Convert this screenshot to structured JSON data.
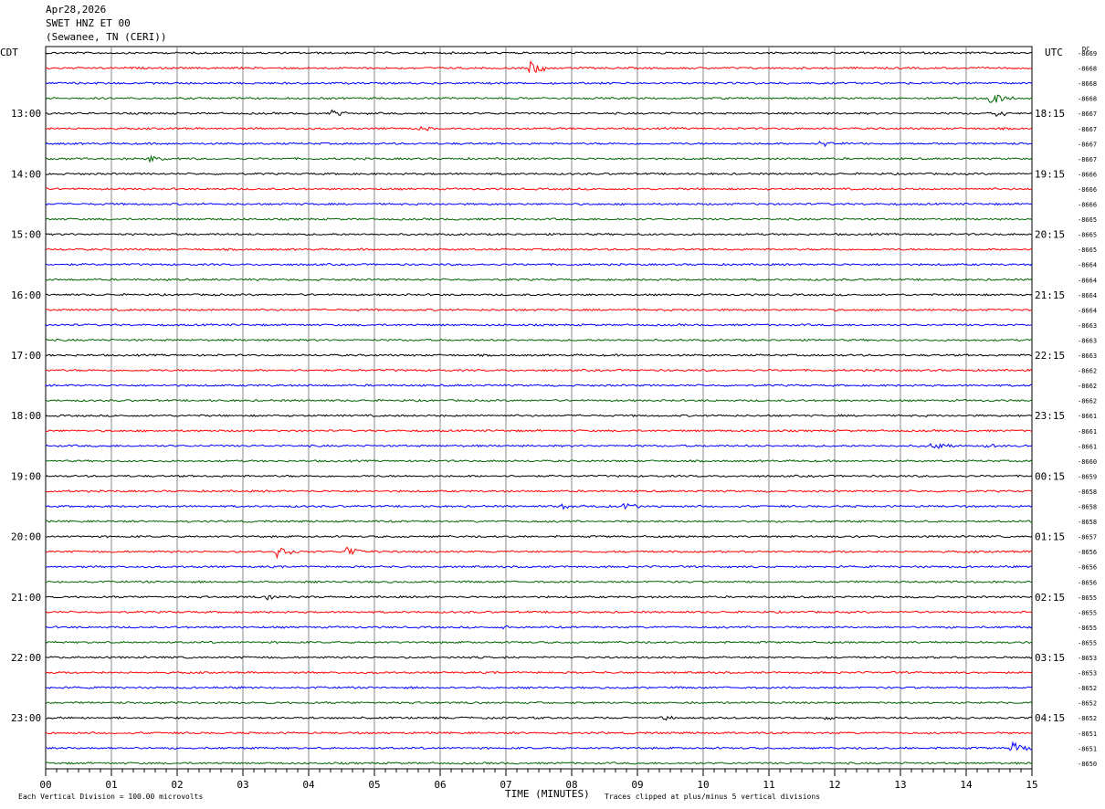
{
  "header": {
    "date": "Apr28,2026",
    "station": "SWET HNZ ET 00",
    "location": "(Sewanee, TN (CERI))"
  },
  "chart_data": {
    "type": "line",
    "title": "",
    "left_axis_label": "CDT",
    "right_axis_label": "UTC",
    "dc_label": "DC",
    "xlabel": "TIME (MINUTES)",
    "xlim": [
      0,
      15
    ],
    "x_tick_labels": [
      "00",
      "01",
      "02",
      "03",
      "04",
      "05",
      "06",
      "07",
      "08",
      "09",
      "10",
      "11",
      "12",
      "13",
      "14",
      "15"
    ],
    "left_hour_labels": [
      "13:00",
      "14:00",
      "15:00",
      "16:00",
      "17:00",
      "18:00",
      "19:00",
      "20:00",
      "21:00",
      "22:00",
      "23:00"
    ],
    "right_hour_labels": [
      "18:15",
      "19:15",
      "20:15",
      "21:15",
      "22:15",
      "23:15",
      "00:15",
      "01:15",
      "02:15",
      "03:15",
      "04:15"
    ],
    "trace_colors": [
      "#000000",
      "#ff0000",
      "#0000ff",
      "#006400"
    ],
    "dc_offsets": [
      "-8669",
      "-8668",
      "-8668",
      "-8668",
      "-8667",
      "-8667",
      "-8667",
      "-8667",
      "-8666",
      "-8666",
      "-8666",
      "-8665",
      "-8665",
      "-8665",
      "-8664",
      "-8664",
      "-8664",
      "-8664",
      "-8663",
      "-8663",
      "-8663",
      "-8662",
      "-8662",
      "-8662",
      "-8661",
      "-8661",
      "-8661",
      "-8660",
      "-8659",
      "-8658",
      "-8658",
      "-8658",
      "-8657",
      "-8656",
      "-8656",
      "-8656",
      "-8655",
      "-8655",
      "-8655",
      "-8655",
      "-8653",
      "-8653",
      "-8652",
      "-8652",
      "-8652",
      "-8651",
      "-8651",
      "-8650"
    ],
    "events": [
      {
        "trace": 1,
        "minute": 7.4,
        "amp": 1.0
      },
      {
        "trace": 3,
        "minute": 14.4,
        "amp": 0.8
      },
      {
        "trace": 4,
        "minute": 4.4,
        "amp": 0.6
      },
      {
        "trace": 4,
        "minute": 14.5,
        "amp": 0.4
      },
      {
        "trace": 5,
        "minute": 5.7,
        "amp": 0.3
      },
      {
        "trace": 6,
        "minute": 11.8,
        "amp": 0.5
      },
      {
        "trace": 7,
        "minute": 1.6,
        "amp": 0.6
      },
      {
        "trace": 26,
        "minute": 13.5,
        "amp": 0.5
      },
      {
        "trace": 26,
        "minute": 14.3,
        "amp": 0.5
      },
      {
        "trace": 30,
        "minute": 8.8,
        "amp": 0.6
      },
      {
        "trace": 30,
        "minute": 7.9,
        "amp": 0.4
      },
      {
        "trace": 33,
        "minute": 3.5,
        "amp": 1.2
      },
      {
        "trace": 33,
        "minute": 4.6,
        "amp": 0.7
      },
      {
        "trace": 36,
        "minute": 3.4,
        "amp": 0.4
      },
      {
        "trace": 38,
        "minute": 7.0,
        "amp": 0.3
      },
      {
        "trace": 44,
        "minute": 9.4,
        "amp": 0.3
      },
      {
        "trace": 44,
        "minute": 11.9,
        "amp": 0.3
      },
      {
        "trace": 46,
        "minute": 14.7,
        "amp": 1.1
      }
    ],
    "footer_left": "Each Vertical Division =  100.00 microvolts",
    "footer_right": "Traces clipped at plus/minus 5 vertical divisions"
  }
}
